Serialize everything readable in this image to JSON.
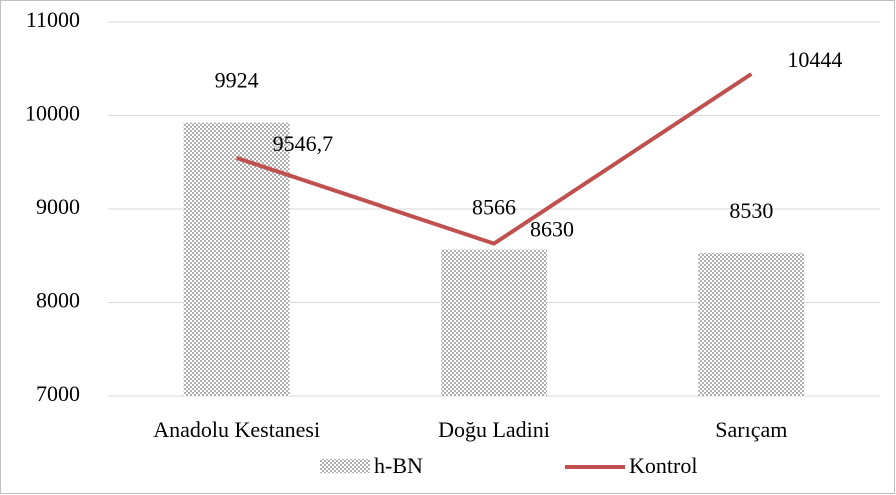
{
  "chart_data": {
    "type": "combo",
    "categories": [
      "Anadolu Kestanesi",
      "Doğu Ladini",
      "Sarıçam"
    ],
    "series": [
      {
        "name": "h-BN",
        "type": "bar",
        "color": "#a6a6a6",
        "values": [
          9924,
          8566,
          8530
        ]
      },
      {
        "name": "Kontrol",
        "type": "line",
        "color": "#c0504d",
        "values": [
          9546.7,
          8630,
          10444
        ],
        "value_labels": [
          "9546,7",
          "8630",
          "10444"
        ]
      }
    ],
    "ylim": [
      7000,
      11000
    ],
    "yticks": [
      7000,
      8000,
      9000,
      10000,
      11000
    ],
    "grid": true,
    "legend": "bottom"
  }
}
